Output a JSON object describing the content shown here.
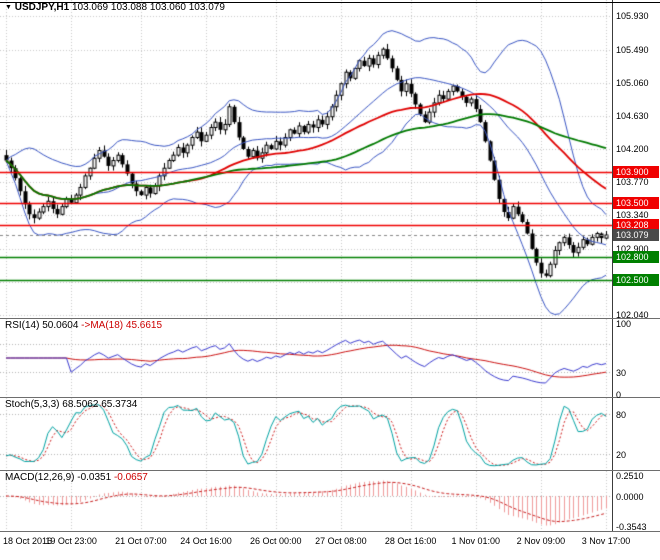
{
  "window": {
    "title_symbol": "USDJPY,H1",
    "ohlc": "103.069 103.088 103.060 103.079"
  },
  "colors": {
    "level_red": "#f00000",
    "level_green": "#008000",
    "bollinger_blue": "#3a56c4",
    "ma_red": "#e00000",
    "ma_green": "#007a00",
    "rsi_blue": "#3b3bd0",
    "rsi_ma_red": "#cc1010",
    "stoch_teal": "#00a3a3",
    "stoch_signal_red": "#d02020",
    "macd_hist": "#ef9b9b",
    "macd_signal": "#c82020",
    "current_tag_bg": "#4a4a4a",
    "grid": "#c8c8c8"
  },
  "main_axis": [
    "105.930",
    "105.490",
    "105.060",
    "104.630",
    "104.200",
    "103.770",
    "103.340",
    "102.900",
    "102.470",
    "102.040"
  ],
  "levels": [
    {
      "label": "103.900",
      "price": 103.9,
      "color": "#f00000"
    },
    {
      "label": "103.500",
      "price": 103.5,
      "color": "#f00000"
    },
    {
      "label": "103.208",
      "price": 103.208,
      "color": "#f00000"
    },
    {
      "label": "102.800",
      "price": 102.8,
      "color": "#008000"
    },
    {
      "label": "102.500",
      "price": 102.5,
      "color": "#008000"
    }
  ],
  "current_price": {
    "label": "103.079",
    "price": 103.079
  },
  "panels": {
    "rsi": {
      "name": "RSI(14)",
      "value": "50.0604",
      "ma_label": "->MA(18)",
      "ma_value": "45.6615",
      "axis": [
        "100",
        "30",
        "0"
      ],
      "level_lines": [
        70,
        30
      ]
    },
    "stoch": {
      "name": "Stoch(5,3,3)",
      "value": "68.5062",
      "signal_value": "65.3734",
      "axis": [
        "80",
        "20"
      ],
      "level_lines": [
        80,
        20
      ]
    },
    "macd": {
      "name": "MACD(12,26,9)",
      "value": "-0.0351",
      "signal_value": "-0.0657",
      "axis": [
        "0.2510",
        "0.0000",
        "-0.3543"
      ]
    }
  },
  "chart_data": {
    "type": "candlestick",
    "symbol": "USDJPY",
    "timeframe": "H1",
    "title": "USDJPY,H1 103.069 103.088 103.060 103.079",
    "ohlc_current": {
      "open": 103.069,
      "high": 103.088,
      "low": 103.06,
      "close": 103.079
    },
    "y_axis": {
      "min": 102.0,
      "max": 106.14,
      "ticks": [
        105.93,
        105.49,
        105.06,
        104.63,
        104.2,
        103.77,
        103.34,
        102.9,
        102.47,
        102.04
      ]
    },
    "x_ticks": [
      {
        "label": "18 Oct 2016",
        "index": 0
      },
      {
        "label": "19 Oct 23:00",
        "index": 14
      },
      {
        "label": "21 Oct 07:00",
        "index": 29
      },
      {
        "label": "24 Oct 16:00",
        "index": 43
      },
      {
        "label": "26 Oct 00:00",
        "index": 58
      },
      {
        "label": "27 Oct 08:00",
        "index": 72
      },
      {
        "label": "28 Oct 16:00",
        "index": 87
      },
      {
        "label": "1 Nov 01:00",
        "index": 101
      },
      {
        "label": "2 Nov 09:00",
        "index": 115
      },
      {
        "label": "3 Nov 17:00",
        "index": 129
      }
    ],
    "closes": [
      104.05,
      103.95,
      103.82,
      103.65,
      103.48,
      103.35,
      103.3,
      103.38,
      103.45,
      103.52,
      103.42,
      103.35,
      103.45,
      103.55,
      103.5,
      103.6,
      103.7,
      103.85,
      103.95,
      104.08,
      104.18,
      104.1,
      103.98,
      104.05,
      104.12,
      104.0,
      103.88,
      103.75,
      103.65,
      103.6,
      103.7,
      103.62,
      103.72,
      103.85,
      103.95,
      104.05,
      104.12,
      104.22,
      104.15,
      104.25,
      104.35,
      104.42,
      104.3,
      104.38,
      104.48,
      104.55,
      104.45,
      104.52,
      104.75,
      104.55,
      104.35,
      104.2,
      104.1,
      104.18,
      104.08,
      104.15,
      104.25,
      104.2,
      104.3,
      104.25,
      104.35,
      104.45,
      104.4,
      104.5,
      104.42,
      104.52,
      104.48,
      104.58,
      104.52,
      104.62,
      104.75,
      104.9,
      105.05,
      105.2,
      105.12,
      105.25,
      105.35,
      105.28,
      105.38,
      105.3,
      105.42,
      105.5,
      105.38,
      105.25,
      105.1,
      104.95,
      105.05,
      104.92,
      104.78,
      104.65,
      104.55,
      104.68,
      104.8,
      104.9,
      104.85,
      104.95,
      105.02,
      104.95,
      104.88,
      104.8,
      104.85,
      104.72,
      104.55,
      104.3,
      104.05,
      103.8,
      103.55,
      103.38,
      103.3,
      103.45,
      103.35,
      103.25,
      103.1,
      102.9,
      102.72,
      102.58,
      102.55,
      102.7,
      102.88,
      102.98,
      103.05,
      102.95,
      102.85,
      102.92,
      103.02,
      102.96,
      103.05,
      103.1,
      103.04,
      103.08
    ],
    "overlays": {
      "bollinger": {
        "period": 20,
        "deviation": 2
      },
      "ma_red_period": 40,
      "ma_green_period": 70,
      "resistance_levels_red": [
        103.9,
        103.5,
        103.208
      ],
      "support_levels_green": [
        102.8,
        102.5
      ],
      "current_price": 103.079
    },
    "indicators": [
      {
        "name": "RSI",
        "params": "14",
        "value": 50.0604,
        "ma_period": 18,
        "ma_value": 45.6615,
        "range": [
          0,
          100
        ],
        "levels": [
          30,
          70
        ]
      },
      {
        "name": "Stochastic",
        "params": "5,3,3",
        "k": 68.5062,
        "d": 65.3734,
        "range": [
          0,
          100
        ],
        "levels": [
          20,
          80
        ]
      },
      {
        "name": "MACD",
        "params": "12,26,9",
        "macd": -0.0351,
        "signal": -0.0657,
        "axis_ticks": [
          0.251,
          0.0,
          -0.3543
        ]
      }
    ]
  }
}
